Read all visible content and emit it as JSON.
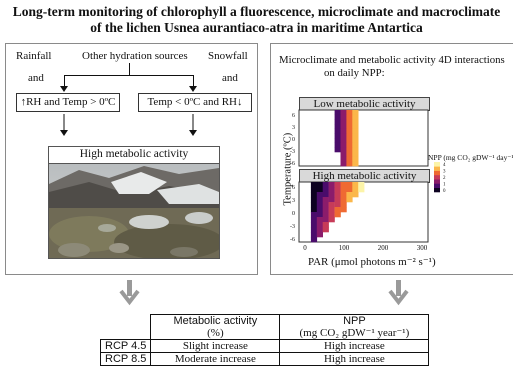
{
  "title": {
    "line1": "Long-term monitoring of chlorophyll a fluorescence, microclimate and macroclimate",
    "line2": "of the lichen Usnea aurantiaco-atra in maritime Antartica"
  },
  "left_panel": {
    "rainfall": "Rainfall",
    "other_sources": "Other hydration sources",
    "snowfall": "Snowfall",
    "and_left": "and",
    "and_right": "and",
    "box_warm": "↑RH and Temp > 0ºC",
    "box_cold": "Temp < 0ºC and  RH↓",
    "high_activity": "High metabolic activity"
  },
  "right_panel": {
    "heading_line1": "Microclimate and metabolic activity 4D interactions",
    "heading_line2": "on daily NPP:",
    "low_label": "Low metabolic activity",
    "high_label": "High metabolic activity",
    "y_axis_label": "Temperature (ºC)",
    "x_axis_label": "PAR (μmol photons m⁻² s⁻¹)",
    "legend_title": "NPP (mg CO₂ gDW⁻¹ day⁻¹)",
    "legend_ticks": [
      "4",
      "3",
      "2",
      "1",
      "0"
    ],
    "y_ticks": [
      "6",
      "3",
      "0",
      "-3",
      "-6"
    ],
    "x_ticks": [
      "0",
      "100",
      "200",
      "300"
    ]
  },
  "table": {
    "header_col2": "Metabolic activity",
    "header_col2_sub": "(%)",
    "header_col3": "NPP",
    "header_col3_sub": "(mg CO₂ gDW⁻¹ year⁻¹)",
    "rows": [
      {
        "scenario": "RCP 4.5",
        "activity": "Slight increase",
        "npp": "High increase"
      },
      {
        "scenario": "RCP 8.5",
        "activity": "Moderate increase",
        "npp": "High increase"
      }
    ]
  },
  "colors": {
    "npp_scale": [
      "#0d0221",
      "#4a0c6b",
      "#8b1c6b",
      "#c73b58",
      "#ef6a32",
      "#fbb74a",
      "#fcf4a8"
    ],
    "arrow_gray": "#9a9a9a"
  }
}
